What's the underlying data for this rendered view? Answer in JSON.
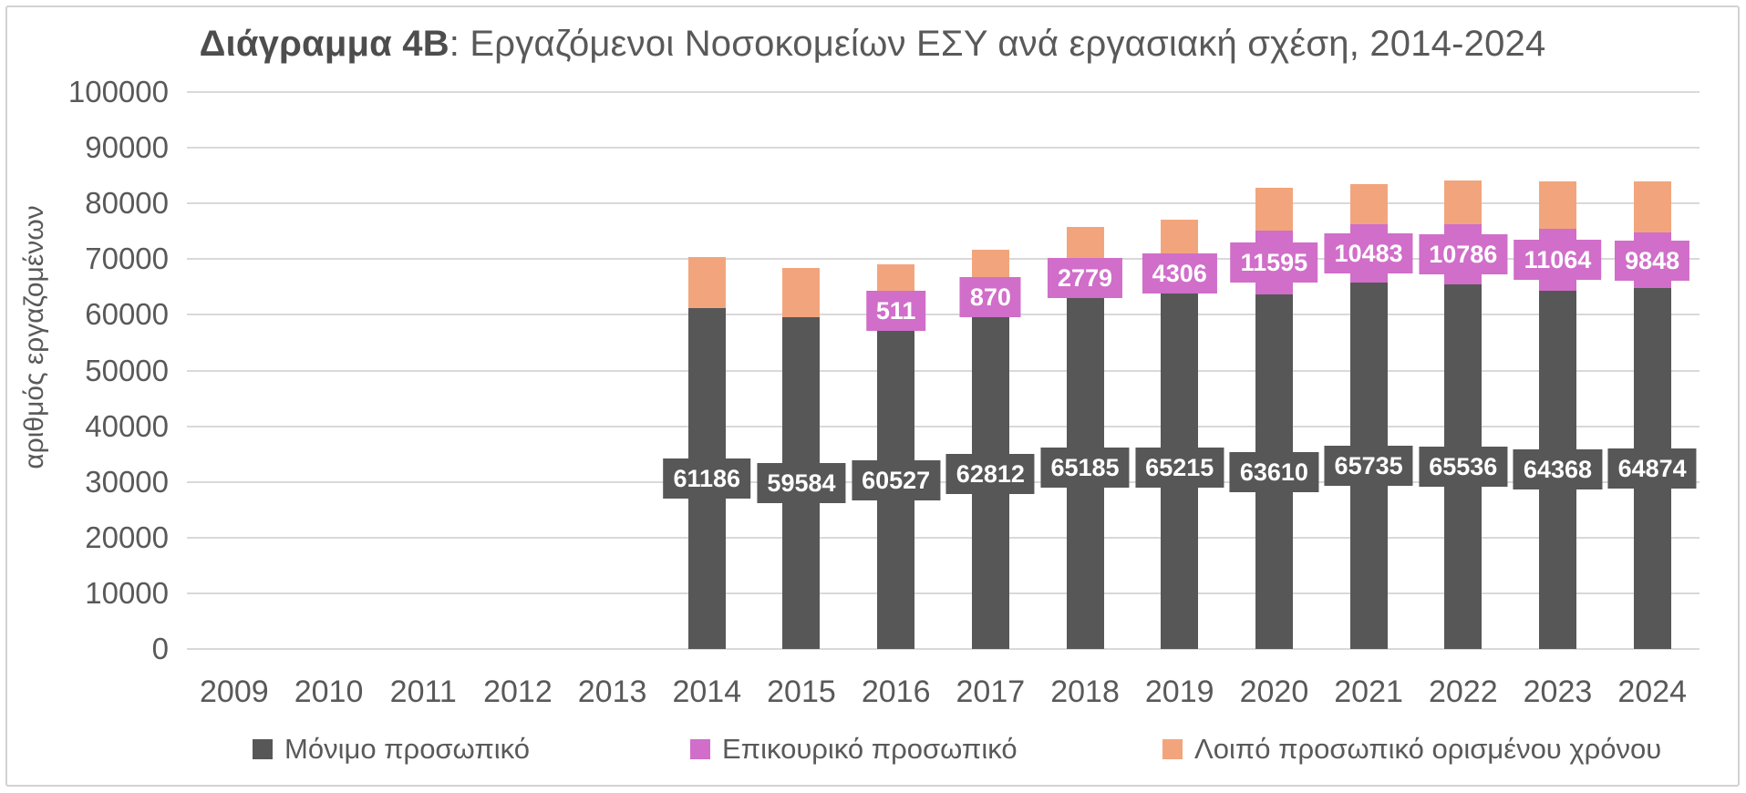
{
  "chart": {
    "title_bold": "Διάγραμμα 4Β",
    "title_rest": ": Εργαζόμενοι Νοσοκομείων ΕΣΥ ανά εργασιακή σχέση, 2014-2024",
    "ylabel": "αριθμός εργαζομένων"
  },
  "chart_data": {
    "type": "bar",
    "stacked": true,
    "title": "Διάγραμμα 4Β: Εργαζόμενοι Νοσοκομείων ΕΣΥ ανά εργασιακή σχέση, 2014-2024",
    "xlabel": "",
    "ylabel": "αριθμός εργαζομένων",
    "ylim": [
      0,
      100000
    ],
    "ytick_step": 10000,
    "yticks": [
      0,
      10000,
      20000,
      30000,
      40000,
      50000,
      60000,
      70000,
      80000,
      90000,
      100000
    ],
    "grid": true,
    "legend_position": "bottom",
    "categories": [
      "2009",
      "2010",
      "2011",
      "2012",
      "2013",
      "2014",
      "2015",
      "2016",
      "2017",
      "2018",
      "2019",
      "2020",
      "2021",
      "2022",
      "2023",
      "2024"
    ],
    "series": [
      {
        "name": "Μόνιμο προσωπικό",
        "color": "#575757",
        "show_labels": true,
        "values": [
          null,
          null,
          null,
          null,
          null,
          61186,
          59584,
          60527,
          62812,
          65185,
          65215,
          63610,
          65735,
          65536,
          64368,
          64874
        ]
      },
      {
        "name": "Επικουρικό προσωπικό",
        "color": "#D06EC9",
        "show_labels": true,
        "values": [
          null,
          null,
          null,
          null,
          null,
          0,
          0,
          511,
          870,
          2779,
          4306,
          11595,
          10483,
          10786,
          11064,
          9848
        ]
      },
      {
        "name": "Λοιπό προσωπικό ορισμένου χρόνου",
        "color": "#F2A57C",
        "show_labels": false,
        "values": [
          null,
          null,
          null,
          null,
          null,
          9200,
          8850,
          8100,
          8050,
          7800,
          7650,
          7600,
          7300,
          7800,
          8550,
          9300
        ]
      }
    ]
  },
  "colors": {
    "gridline": "#d9d9d9",
    "axis_text": "#595959",
    "frame_border": "#d2d2d2",
    "label_text": "#ffffff"
  }
}
